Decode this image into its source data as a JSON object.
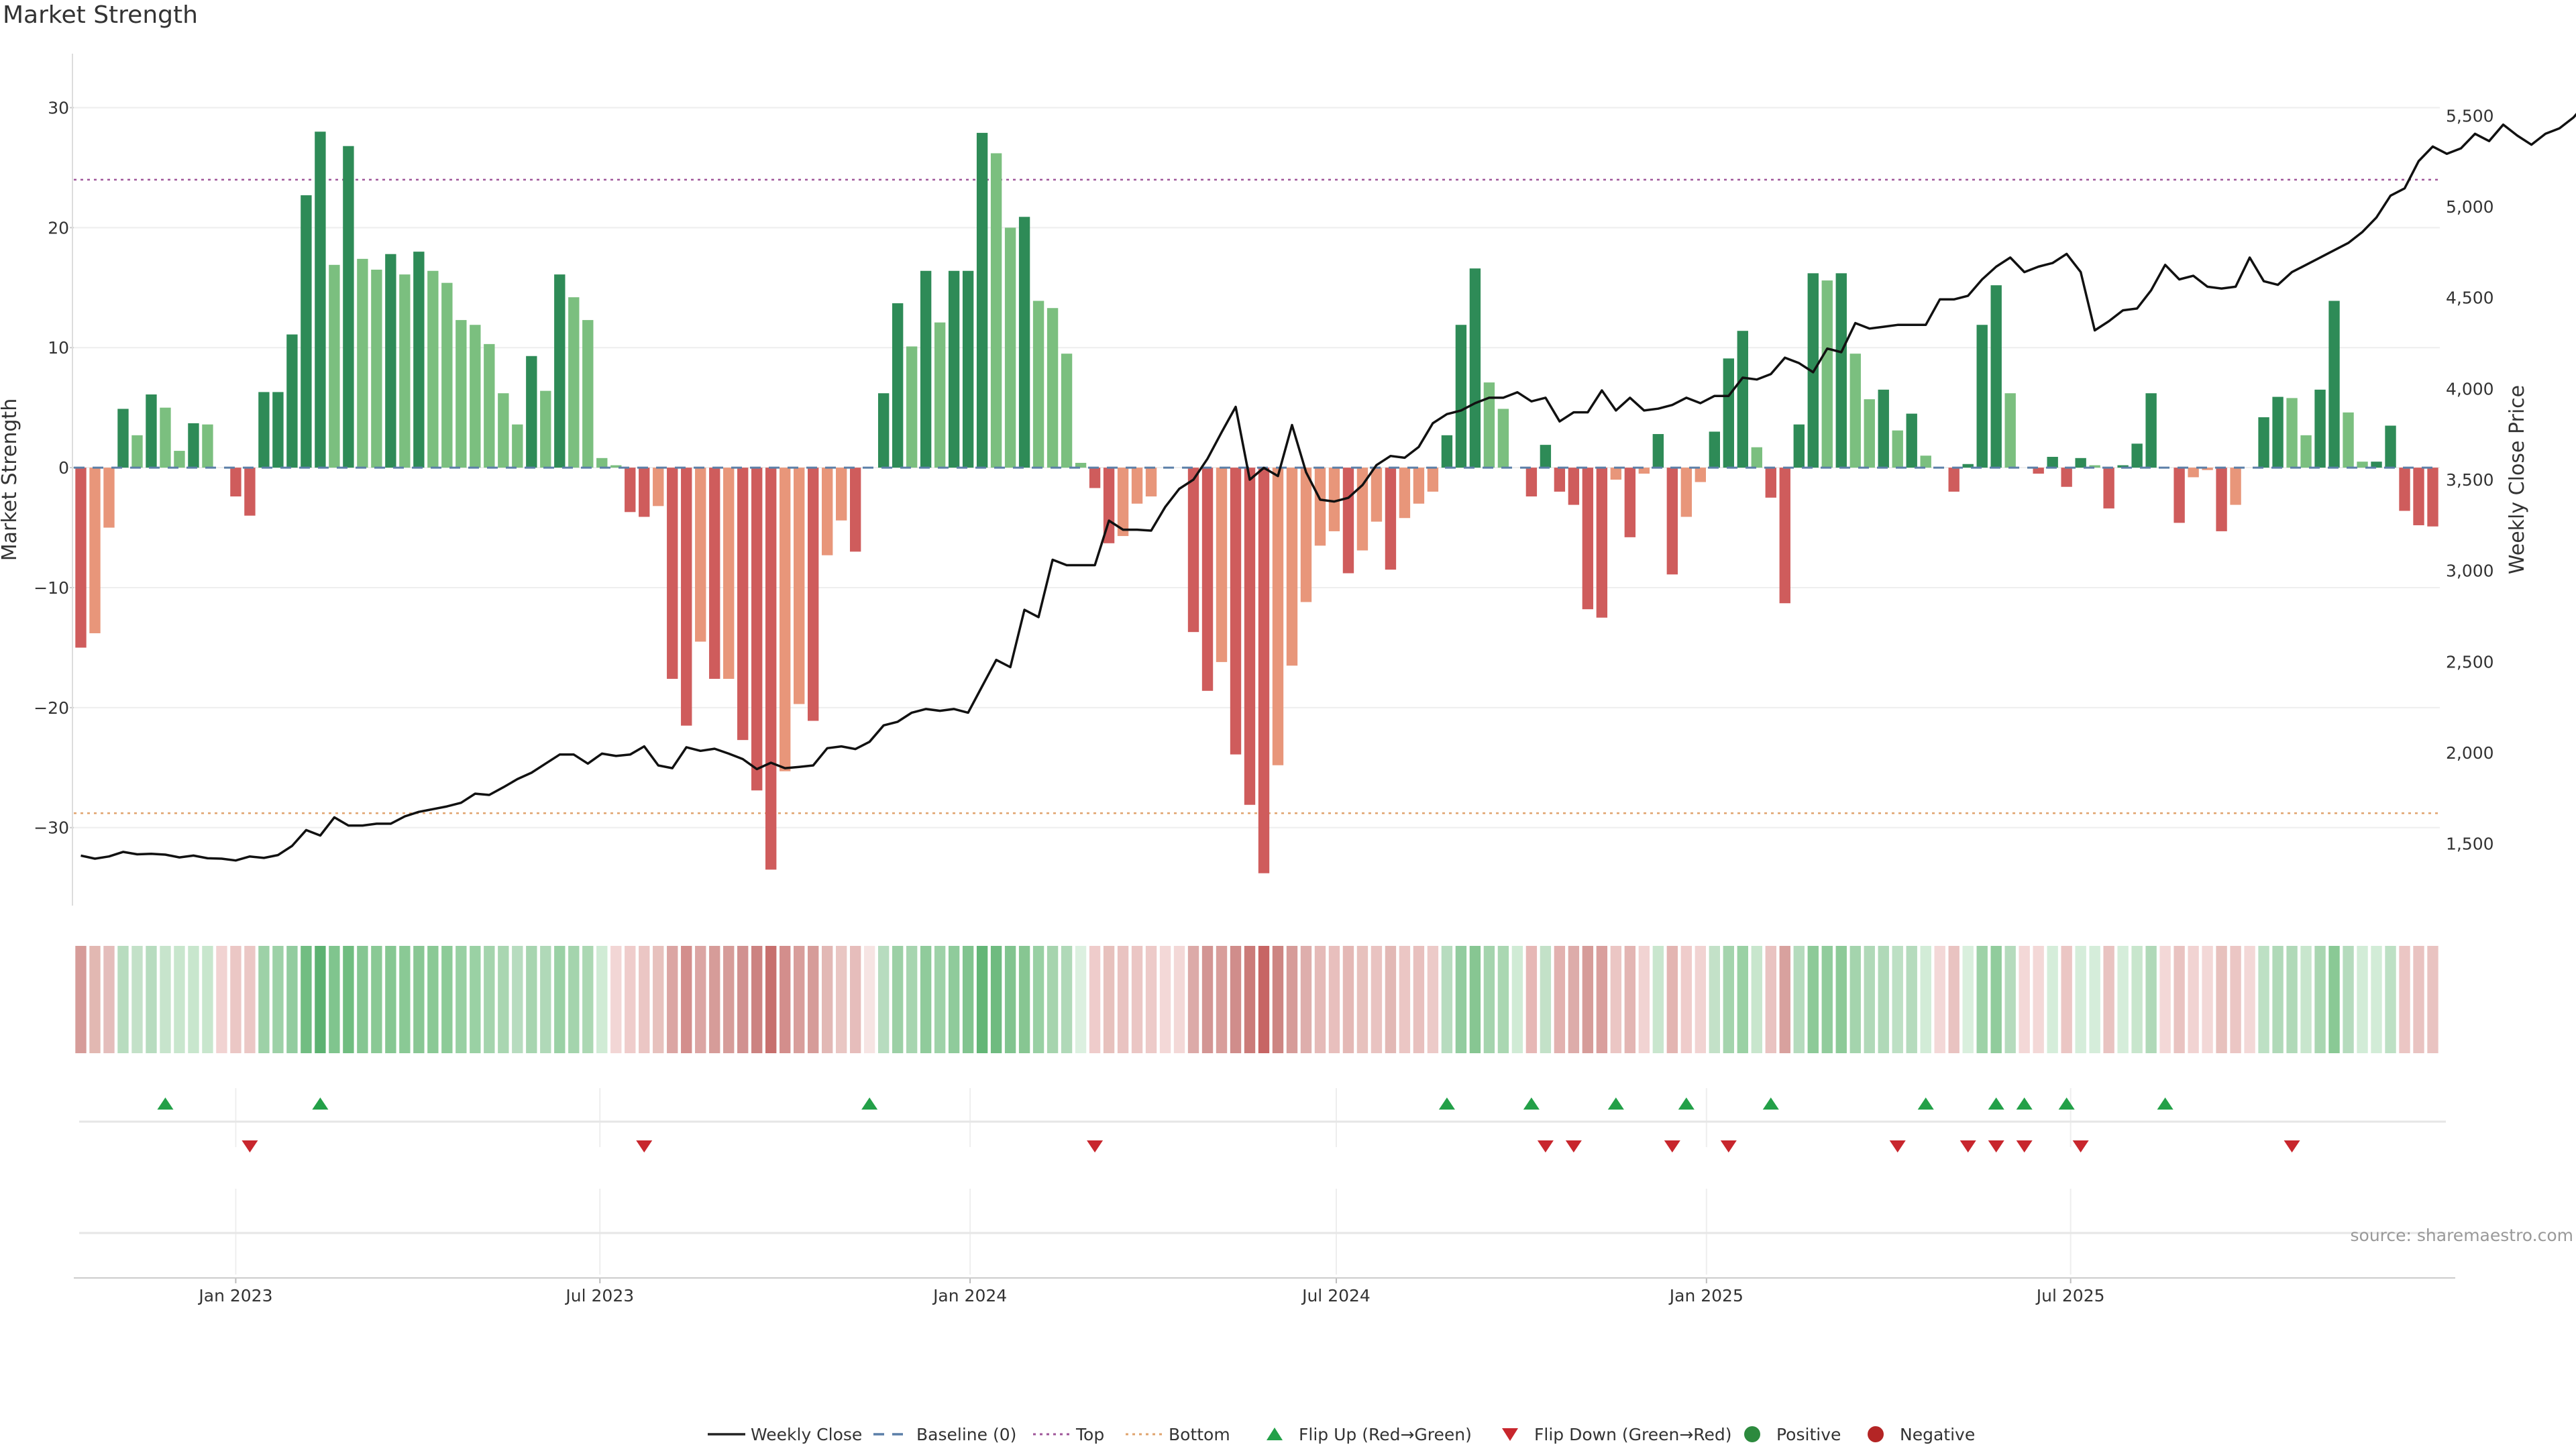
{
  "title": "Market Strength",
  "source": "source: sharemaestro.com",
  "chart_data": {
    "type": "bar",
    "ylabel": "Market Strength",
    "y2label": "Weekly Close Price",
    "ylim": [
      -36.5,
      34.5
    ],
    "y2lim": [
      1160,
      5840
    ],
    "yticks": [
      "30",
      "20",
      "10",
      "0",
      "−10",
      "−20",
      "−30"
    ],
    "y2ticks": [
      "5,500",
      "5,000",
      "4,500",
      "4,000",
      "3,500",
      "3,000",
      "2,500",
      "2,000",
      "1,500"
    ],
    "start_date": "2022-10-16",
    "x_labels": [
      "Jan 2023",
      "Jul 2023",
      "Jan 2024",
      "Jul 2024",
      "Jan 2025",
      "Jul 2025"
    ],
    "top_line": 24,
    "bottom_line": -28.8,
    "strength": [
      -15,
      -13.8,
      -5,
      4.9,
      2.7,
      6.1,
      5,
      1.4,
      3.7,
      3.6,
      0,
      -2.4,
      -4,
      6.3,
      6.3,
      11.1,
      22.7,
      28,
      16.9,
      26.8,
      17.4,
      16.5,
      17.8,
      16.1,
      18,
      16.4,
      15.4,
      12.3,
      11.9,
      10.3,
      6.2,
      3.6,
      9.3,
      6.4,
      16.1,
      14.2,
      12.3,
      0.8,
      0.2,
      -3.7,
      -4.1,
      -3.2,
      -17.6,
      -21.5,
      -14.5,
      -17.6,
      -17.6,
      -22.7,
      -26.9,
      -33.5,
      -25.3,
      -19.7,
      -21.1,
      -7.3,
      -4.4,
      -7,
      0,
      6.2,
      13.7,
      10.1,
      16.4,
      12.1,
      16.4,
      16.4,
      27.9,
      26.2,
      20,
      20.9,
      13.9,
      13.3,
      9.5,
      0.4,
      -1.7,
      -6.3,
      -5.7,
      -3,
      -2.4,
      0,
      0,
      -13.7,
      -18.6,
      -16.2,
      -23.9,
      -28.1,
      -33.8,
      -24.8,
      -16.5,
      -11.2,
      -6.5,
      -5.3,
      -8.8,
      -6.9,
      -4.5,
      -8.5,
      -4.2,
      -3,
      -2,
      2.7,
      11.9,
      16.6,
      7.1,
      4.9,
      0,
      -2.4,
      1.9,
      -2,
      -3.1,
      -11.8,
      -12.5,
      -1,
      -5.8,
      -0.5,
      2.8,
      -8.9,
      -4.1,
      -1.2,
      3,
      9.1,
      11.4,
      1.7,
      -2.5,
      -11.3,
      3.6,
      16.2,
      15.6,
      16.2,
      9.5,
      5.7,
      6.5,
      3.1,
      4.5,
      1,
      0,
      -2,
      0.3,
      11.9,
      15.2,
      6.2,
      0,
      -0.5,
      0.9,
      -1.6,
      0.8,
      0.2,
      -3.4,
      0.2,
      2,
      6.2,
      0,
      -4.6,
      -0.8,
      -0.2,
      -5.3,
      -3.1,
      0,
      4.2,
      5.9,
      5.8,
      2.7,
      6.5,
      13.9,
      4.6,
      0.5,
      0.5,
      3.5,
      -3.6,
      -4.8,
      -4.9
    ],
    "heat_colors": [
      "#d69c99",
      "#e2b8b2",
      "#e4bdbb",
      "#b8dcbf",
      "#c3e1c8",
      "#b7dcbf",
      "#c7e4cc",
      "#c8e6cd",
      "#c8e6cd",
      "#c8e6cd",
      "#f1d3d2",
      "#ebc7c5",
      "#ebc7c5",
      "#9dd1a7",
      "#9dd1a7",
      "#92cc9f",
      "#71bd82",
      "#5cb271",
      "#80c58e",
      "#70bd80",
      "#85c692",
      "#8ac995",
      "#86c792",
      "#8ac995",
      "#89c794",
      "#8ac995",
      "#8dcb98",
      "#98d0a3",
      "#9ad1a4",
      "#a4d4ad",
      "#a9d6b1",
      "#b7dcbf",
      "#a7d5b0",
      "#b0d9b8",
      "#9ad1a5",
      "#a4d4ad",
      "#acd8b3",
      "#d0ebd5",
      "#f2d6d5",
      "#efcccb",
      "#ebc6c4",
      "#e7c1bd",
      "#dba5a3",
      "#d38e8c",
      "#dba5a3",
      "#d69c99",
      "#d69c99",
      "#d19190",
      "#cc8381",
      "#c76f6d",
      "#d38e8c",
      "#d89e9b",
      "#d69c99",
      "#e2b8b5",
      "#e9c6c3",
      "#e6bdbb",
      "#f6e4e3",
      "#b7dcbf",
      "#9cd0a6",
      "#a7d5b0",
      "#90cb9b",
      "#9ed2a8",
      "#8fcb9b",
      "#81c48f",
      "#63b677",
      "#6fbb80",
      "#81c48f",
      "#87c692",
      "#98d0a3",
      "#a6d4ae",
      "#b0d9b8",
      "#dcf0e0",
      "#efcccb",
      "#e7c1bd",
      "#e9c3c1",
      "#ebc6c4",
      "#edcac8",
      "#f3d8d7",
      "#f3d8d7",
      "#dcaaa8",
      "#d39593",
      "#d89e9b",
      "#d08d8b",
      "#cb7b79",
      "#c76564",
      "#cd8582",
      "#d69c99",
      "#deaeac",
      "#e5bab8",
      "#e8bfbd",
      "#e4b8b5",
      "#e7c1bd",
      "#e9c3c1",
      "#e2b8b5",
      "#ebc6c4",
      "#e8c0be",
      "#eccac8",
      "#b7dcbf",
      "#92cc9f",
      "#87c692",
      "#a4d4ad",
      "#aad7b2",
      "#d0ebd5",
      "#e6b7b5",
      "#c3e1c8",
      "#e2b1af",
      "#ddacaa",
      "#d69c99",
      "#d99f9d",
      "#ebc6c4",
      "#e3b5b3",
      "#f1d3d2",
      "#c9e6ce",
      "#e3b5b2",
      "#efcccb",
      "#f1d3d2",
      "#c3e1c8",
      "#a4d4ad",
      "#9ad1a4",
      "#c8e6cd",
      "#e9c3c1",
      "#d8a19e",
      "#b5dbbd",
      "#8dca98",
      "#91cc9c",
      "#8dca98",
      "#a4d4ad",
      "#b0d9b8",
      "#b0d9b8",
      "#bde0c4",
      "#b5dbbd",
      "#d2ecd7",
      "#f3d8d7",
      "#e9c3c1",
      "#d9efdd",
      "#9ed2a8",
      "#91cc9c",
      "#b5dbbd",
      "#f3d8d7",
      "#f3d8d7",
      "#d5edda",
      "#ebc6c4",
      "#d5edda",
      "#d5edda",
      "#e9c3c1",
      "#d5edda",
      "#c8e6cd",
      "#b0d9b8",
      "#f3d8d7",
      "#e9c3c1",
      "#f1d3d2",
      "#f3d8d7",
      "#e7c1bd",
      "#ebc6c4",
      "#f3d8d7",
      "#bde0c4",
      "#b0d9b8",
      "#b0d9b8",
      "#c8e6cd",
      "#a9d6b1",
      "#8ac995",
      "#b5dbbd",
      "#d2ecd7",
      "#d2ecd7",
      "#bde0c4",
      "#ebc6c4",
      "#e9c3c1",
      "#e9c3c1"
    ],
    "price": [
      1435,
      1418,
      1430,
      1455,
      1442,
      1445,
      1440,
      1425,
      1435,
      1420,
      1418,
      1408,
      1430,
      1422,
      1438,
      1488,
      1575,
      1545,
      1645,
      1600,
      1600,
      1610,
      1610,
      1650,
      1675,
      1690,
      1705,
      1725,
      1775,
      1768,
      1810,
      1855,
      1890,
      1940,
      1990,
      1990,
      1940,
      1995,
      1982,
      1990,
      2035,
      1930,
      1915,
      2030,
      2010,
      2022,
      1995,
      1965,
      1910,
      1945,
      1915,
      1922,
      1930,
      2025,
      2035,
      2020,
      2060,
      2150,
      2170,
      2220,
      2240,
      2230,
      2240,
      2220,
      2365,
      2510,
      2470,
      2785,
      2745,
      3060,
      3030,
      3030,
      3030,
      3275,
      3225,
      3225,
      3220,
      3350,
      3450,
      3500,
      3615,
      3760,
      3900,
      3500,
      3565,
      3520,
      3800,
      3540,
      3390,
      3380,
      3400,
      3470,
      3580,
      3630,
      3620,
      3680,
      3810,
      3860,
      3880,
      3920,
      3950,
      3950,
      3980,
      3930,
      3950,
      3820,
      3870,
      3870,
      3990,
      3880,
      3950,
      3880,
      3890,
      3910,
      3950,
      3920,
      3960,
      3960,
      4060,
      4050,
      4080,
      4170,
      4140,
      4090,
      4220,
      4200,
      4360,
      4330,
      4340,
      4350,
      4350,
      4350,
      4490,
      4490,
      4510,
      4600,
      4670,
      4720,
      4640,
      4670,
      4690,
      4740,
      4640,
      4320,
      4370,
      4430,
      4440,
      4540,
      4680,
      4600,
      4620,
      4560,
      4550,
      4560,
      4720,
      4590,
      4570,
      4640,
      4680,
      4720,
      4760,
      4800,
      4860,
      4940,
      5060,
      5100,
      5250,
      5330,
      5290,
      5320,
      5400,
      5360,
      5450,
      5390,
      5340,
      5400,
      5430,
      5490,
      5580,
      5380
    ]
  },
  "signals": {
    "flip_up_dates": [
      "2022-11-27",
      "2023-02-12",
      "2023-11-12",
      "2024-08-25",
      "2024-10-06",
      "2024-11-17",
      "2024-12-22",
      "2025-02-02",
      "2025-04-20",
      "2025-05-25",
      "2025-06-08",
      "2025-06-29",
      "2025-08-17"
    ],
    "flip_down_dates": [
      "2023-01-08",
      "2023-07-23",
      "2024-03-03",
      "2024-10-13",
      "2024-10-27",
      "2024-12-15",
      "2025-01-12",
      "2025-04-06",
      "2025-05-11",
      "2025-05-25",
      "2025-06-08",
      "2025-07-06",
      "2025-10-19"
    ]
  },
  "legend": [
    {
      "label": "Weekly Close",
      "kind": "line-solid",
      "color": "#222222"
    },
    {
      "label": "Baseline (0)",
      "kind": "line-dash",
      "color": "#5b7fa8"
    },
    {
      "label": "Top",
      "kind": "line-dot",
      "color": "#a0569a"
    },
    {
      "label": "Bottom",
      "kind": "line-dot",
      "color": "#e0a46e"
    },
    {
      "label": "Flip Up (Red→Green)",
      "kind": "tri-up",
      "color": "#23a048"
    },
    {
      "label": "Flip Down (Green→Red)",
      "kind": "tri-down",
      "color": "#c8262d"
    },
    {
      "label": "Positive",
      "kind": "circle",
      "color": "#2c8a3e"
    },
    {
      "label": "Negative",
      "kind": "circle",
      "color": "#b42525"
    }
  ],
  "colors": {
    "pos_strong": "#2e8b57",
    "pos_weak": "#7bbf7f",
    "neg_strong": "#cf5c5c",
    "neg_weak": "#e8967a",
    "price_line": "#111111",
    "grid": "#eeeeee"
  }
}
